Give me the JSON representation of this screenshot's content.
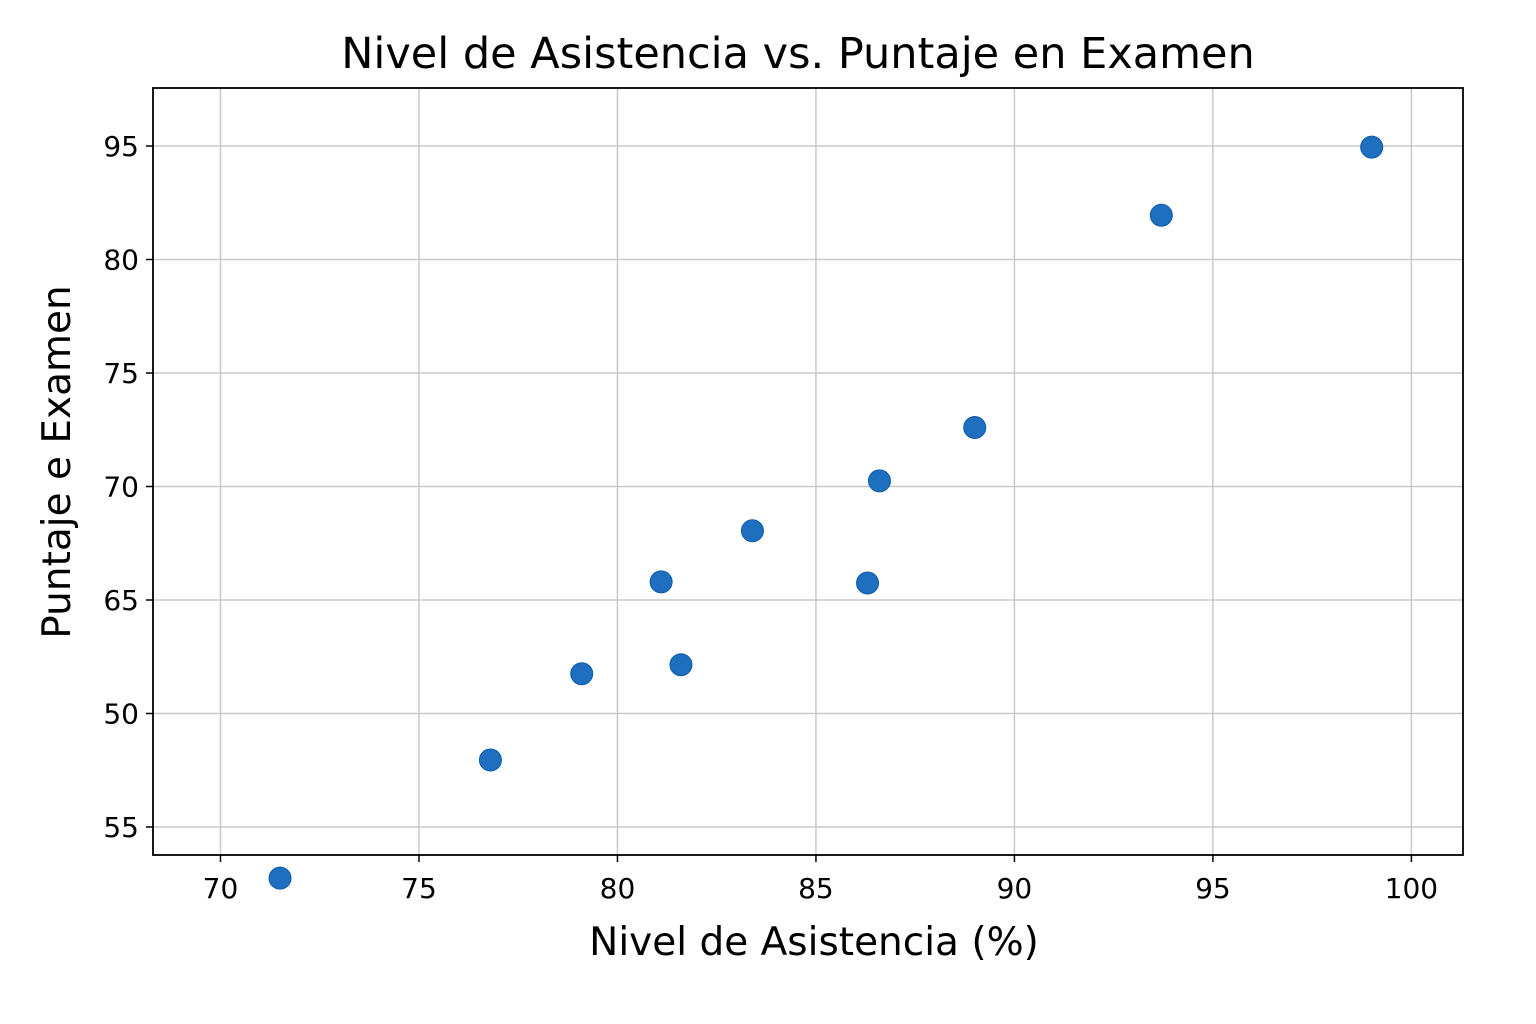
{
  "chart_data": {
    "type": "scatter",
    "title": "Nivel de Asistencia vs. Puntaje en Examen",
    "xlabel": "Nivel de Asistencia (%)",
    "ylabel": "Puntaje e Examen",
    "xlim": [
      68.3,
      101.3
    ],
    "xticks": [
      {
        "value": 70,
        "label": "70"
      },
      {
        "value": 75,
        "label": "75"
      },
      {
        "value": 80,
        "label": "80"
      },
      {
        "value": 85,
        "label": "85"
      },
      {
        "value": 90,
        "label": "90"
      },
      {
        "value": 95,
        "label": "95"
      },
      {
        "value": 100,
        "label": "100"
      }
    ],
    "yticks": [
      {
        "label": "95"
      },
      {
        "label": "80"
      },
      {
        "label": "75"
      },
      {
        "label": "70"
      },
      {
        "label": "65"
      },
      {
        "label": "50"
      },
      {
        "label": "55"
      }
    ],
    "ylim_note": "y tick labels printed top to bottom: 95, 80, 75, 70, 65, 50, 55 (equally spaced); point y values are positions on this 7-step tick scale, 0 = tick labelled 95, 6 = tick labelled 55",
    "points": [
      {
        "x": 71.5,
        "y": 6.45
      },
      {
        "x": 76.8,
        "y": 5.41
      },
      {
        "x": 79.1,
        "y": 4.65
      },
      {
        "x": 81.1,
        "y": 3.84
      },
      {
        "x": 81.6,
        "y": 4.57
      },
      {
        "x": 83.4,
        "y": 3.39
      },
      {
        "x": 86.3,
        "y": 3.85
      },
      {
        "x": 86.6,
        "y": 2.95
      },
      {
        "x": 89.0,
        "y": 2.48
      },
      {
        "x": 93.7,
        "y": 0.61
      },
      {
        "x": 99.0,
        "y": 0.01
      }
    ],
    "grid": true,
    "marker_color": "#1f6fc1"
  }
}
